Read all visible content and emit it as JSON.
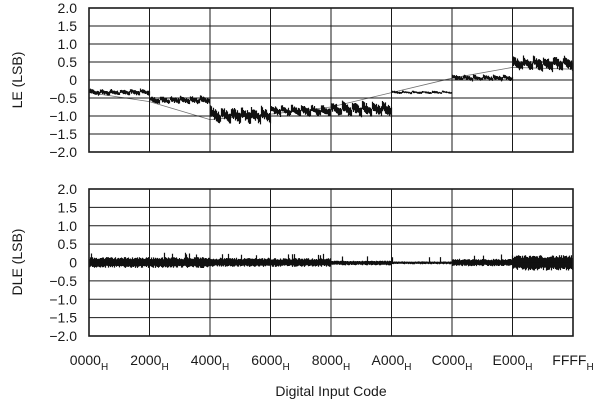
{
  "chart_data": [
    {
      "type": "line",
      "title": "",
      "xlabel": "",
      "ylabel": "LE (LSB)",
      "ylim": [
        -2.0,
        2.0
      ],
      "yticks": [
        "2.0",
        "1.5",
        "1.0",
        "0.5",
        "0",
        "-0.5",
        "-1.0",
        "-1.5",
        "-2.0"
      ],
      "xlim": [
        0,
        65535
      ],
      "grid": true,
      "band_min": [
        -0.45,
        -0.7,
        -1.25,
        -1.05,
        -1.05,
        -0.4,
        -0.05,
        0.2
      ],
      "band_max": [
        -0.25,
        -0.45,
        -0.75,
        -0.7,
        -0.6,
        -0.3,
        0.15,
        0.65
      ],
      "series": [
        {
          "x": [
            0,
            8192,
            16384,
            24576,
            32768,
            40960,
            49152,
            57344,
            65535
          ],
          "values": [
            -0.35,
            -0.6,
            -1.1,
            -0.95,
            -0.75,
            -0.35,
            0.05,
            0.35,
            0.3
          ]
        }
      ]
    },
    {
      "type": "line",
      "title": "",
      "xlabel": "Digital Input Code",
      "ylabel": "DLE (LSB)",
      "ylim": [
        -2.0,
        2.0
      ],
      "yticks": [
        "2.0",
        "1.5",
        "1.0",
        "0.5",
        "0",
        "-0.5",
        "-1.0",
        "-1.5",
        "-2.0"
      ],
      "xlim": [
        0,
        65535
      ],
      "xticks": [
        {
          "main": "0000",
          "sub": "H"
        },
        {
          "main": "2000",
          "sub": "H"
        },
        {
          "main": "4000",
          "sub": "H"
        },
        {
          "main": "6000",
          "sub": "H"
        },
        {
          "main": "8000",
          "sub": "H"
        },
        {
          "main": "A000",
          "sub": "H"
        },
        {
          "main": "C000",
          "sub": "H"
        },
        {
          "main": "E000",
          "sub": "H"
        },
        {
          "main": "FFFF",
          "sub": "H"
        }
      ],
      "grid": true,
      "band_min": [
        -0.15,
        -0.15,
        -0.12,
        -0.12,
        -0.08,
        -0.05,
        -0.1,
        -0.22
      ],
      "band_max": [
        0.15,
        0.15,
        0.13,
        0.12,
        0.05,
        0.03,
        0.1,
        0.2
      ],
      "series": [
        {
          "x": [
            0,
            8192,
            16384,
            24576,
            32768,
            40960,
            49152,
            57344,
            65535
          ],
          "values": [
            0,
            0,
            0,
            0,
            0,
            0,
            0,
            0,
            0
          ]
        }
      ]
    }
  ]
}
